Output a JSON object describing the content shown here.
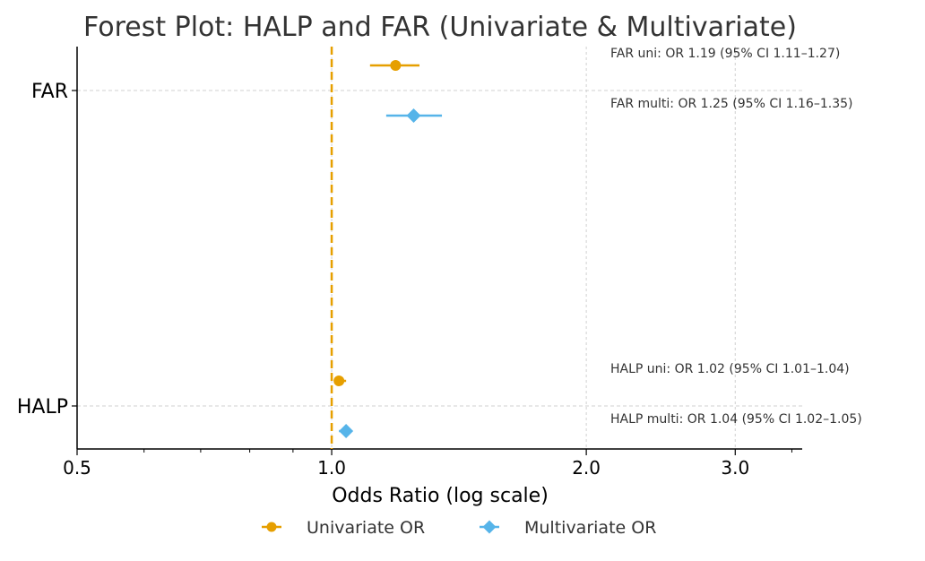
{
  "chart_data": {
    "type": "scatter",
    "title": "Forest Plot: HALP and FAR (Univariate & Multivariate)",
    "xlabel": "Odds Ratio (log scale)",
    "ylabel": "",
    "x_scale": "log",
    "xlim": [
      0.5,
      3.6
    ],
    "x_ticks": [
      {
        "value": 0.5,
        "label": "0.5"
      },
      {
        "value": 1.0,
        "label": "1.0"
      },
      {
        "value": 2.0,
        "label": "2.0"
      },
      {
        "value": 3.0,
        "label": "3.0"
      }
    ],
    "categories": [
      "FAR",
      "HALP"
    ],
    "reference_line": 1.0,
    "grid": "dashed light gray",
    "legend_position": "bottom-center",
    "series": [
      {
        "name": "Univariate OR",
        "color": "#E69F00",
        "marker": "circle",
        "points": [
          {
            "variable": "FAR",
            "or": 1.19,
            "ci": [
              1.11,
              1.27
            ],
            "label": "FAR uni: OR 1.19 (95% CI 1.11–1.27)"
          },
          {
            "variable": "HALP",
            "or": 1.02,
            "ci": [
              1.01,
              1.04
            ],
            "label": "HALP uni: OR 1.02 (95% CI 1.01–1.04)"
          }
        ]
      },
      {
        "name": "Multivariate OR",
        "color": "#56B4E9",
        "marker": "diamond",
        "points": [
          {
            "variable": "FAR",
            "or": 1.25,
            "ci": [
              1.16,
              1.35
            ],
            "label": "FAR multi: OR 1.25 (95% CI 1.16–1.35)"
          },
          {
            "variable": "HALP",
            "or": 1.04,
            "ci": [
              1.02,
              1.05
            ],
            "label": "HALP multi: OR 1.04 (95% CI 1.02–1.05)"
          }
        ]
      }
    ]
  }
}
